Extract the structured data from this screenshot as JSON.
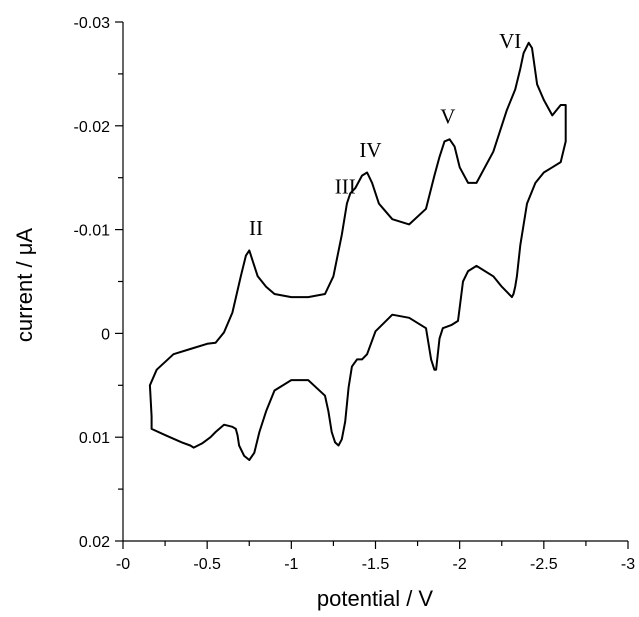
{
  "chart_data": {
    "type": "line",
    "xlabel": "potential / V",
    "ylabel": "current / μA",
    "xlim": [
      0,
      -3
    ],
    "ylim": [
      0.02,
      -0.03
    ],
    "x_ticks": [
      "-0",
      "-0.5",
      "-1",
      "-1.5",
      "-2",
      "-2.5",
      "-3"
    ],
    "y_ticks": [
      "-0.03",
      "-0.02",
      "-0.01",
      "0",
      "0.01",
      "0.02"
    ],
    "grid": false,
    "line_color": "#000000",
    "series": [
      {
        "x": [
          -0.16,
          -0.2,
          -0.3,
          -0.4,
          -0.5,
          -0.55,
          -0.6,
          -0.65,
          -0.7,
          -0.73,
          -0.75,
          -0.77,
          -0.8,
          -0.85,
          -0.9,
          -1.0,
          -1.1,
          -1.2,
          -1.25,
          -1.3,
          -1.33,
          -1.35,
          -1.38,
          -1.42,
          -1.45,
          -1.48,
          -1.52,
          -1.6,
          -1.7,
          -1.8,
          -1.85,
          -1.88,
          -1.91,
          -1.94,
          -1.97,
          -2.0,
          -2.05,
          -2.1,
          -2.2,
          -2.28,
          -2.33,
          -2.36,
          -2.38,
          -2.41,
          -2.43,
          -2.46,
          -2.5,
          -2.55,
          -2.6,
          -2.63,
          -2.63,
          -2.6,
          -2.55,
          -2.5,
          -2.45,
          -2.4,
          -2.36,
          -2.34,
          -2.33,
          -2.32,
          -2.31,
          -2.25,
          -2.2,
          -2.1,
          -2.05,
          -2.02,
          -1.99,
          -1.95,
          -1.9,
          -1.88,
          -1.87,
          -1.86,
          -1.85,
          -1.83,
          -1.8,
          -1.7,
          -1.6,
          -1.5,
          -1.45,
          -1.42,
          -1.39,
          -1.36,
          -1.34,
          -1.32,
          -1.3,
          -1.28,
          -1.26,
          -1.24,
          -1.22,
          -1.2,
          -1.1,
          -1.0,
          -0.9,
          -0.85,
          -0.81,
          -0.78,
          -0.75,
          -0.72,
          -0.69,
          -0.68,
          -0.67,
          -0.65,
          -0.6,
          -0.55,
          -0.52,
          -0.47,
          -0.42,
          -0.4,
          -0.35,
          -0.25,
          -0.17,
          -0.17,
          -0.16
        ],
        "y": [
          0.005,
          0.0035,
          0.002,
          0.0015,
          0.001,
          0.0009,
          -0.0001,
          -0.002,
          -0.0055,
          -0.0075,
          -0.008,
          -0.007,
          -0.0055,
          -0.0045,
          -0.0038,
          -0.0035,
          -0.0035,
          -0.0038,
          -0.0055,
          -0.0095,
          -0.0125,
          -0.0135,
          -0.014,
          -0.0152,
          -0.0155,
          -0.0145,
          -0.0125,
          -0.011,
          -0.0105,
          -0.012,
          -0.0152,
          -0.017,
          -0.0185,
          -0.0187,
          -0.018,
          -0.016,
          -0.0145,
          -0.0145,
          -0.0175,
          -0.0215,
          -0.0235,
          -0.0255,
          -0.027,
          -0.028,
          -0.0275,
          -0.024,
          -0.0225,
          -0.021,
          -0.022,
          -0.022,
          -0.0185,
          -0.0165,
          -0.016,
          -0.0155,
          -0.0145,
          -0.0125,
          -0.0085,
          -0.0055,
          -0.0045,
          -0.0038,
          -0.0035,
          -0.0045,
          -0.0055,
          -0.0065,
          -0.006,
          -0.005,
          -0.0012,
          -0.0008,
          -0.0005,
          0.0005,
          0.002,
          0.0035,
          0.0035,
          0.0025,
          -0.0005,
          -0.0015,
          -0.0018,
          -0.0002,
          0.002,
          0.0025,
          0.0025,
          0.0032,
          0.0052,
          0.0085,
          0.0102,
          0.0108,
          0.0105,
          0.0095,
          0.0075,
          0.006,
          0.0045,
          0.0045,
          0.0055,
          0.0075,
          0.0095,
          0.0115,
          0.0122,
          0.0118,
          0.0108,
          0.0098,
          0.0092,
          0.009,
          0.0088,
          0.0095,
          0.01,
          0.0106,
          0.011,
          0.0108,
          0.0105,
          0.0098,
          0.0092,
          0.008,
          0.005
        ]
      }
    ],
    "annotations": [
      {
        "text": "II",
        "x": -0.79,
        "y": -0.0095
      },
      {
        "text": "III",
        "x": -1.32,
        "y": -0.0135
      },
      {
        "text": "IV",
        "x": -1.47,
        "y": -0.017
      },
      {
        "text": "V",
        "x": -1.93,
        "y": -0.0202
      },
      {
        "text": "VI",
        "x": -2.3,
        "y": -0.0275
      }
    ]
  }
}
